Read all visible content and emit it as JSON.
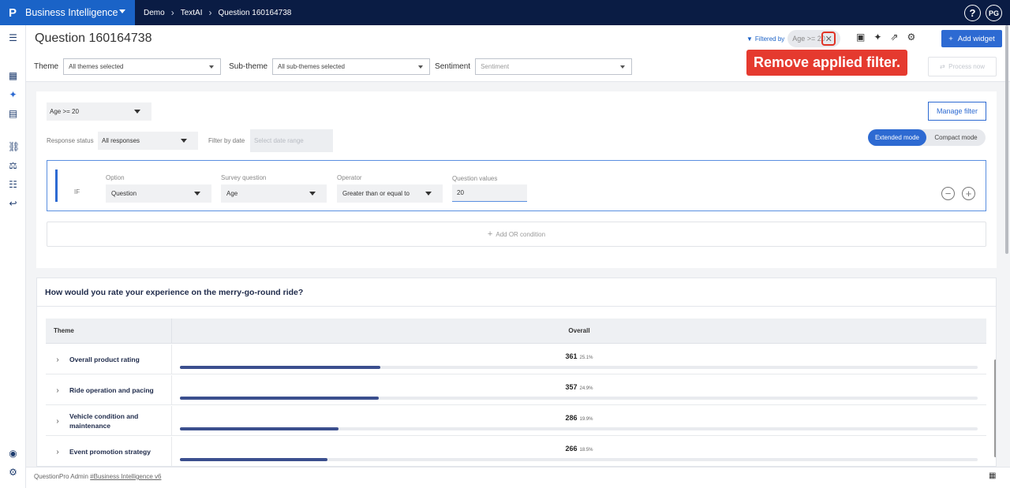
{
  "app": {
    "logo": "P",
    "name": "Business Intelligence"
  },
  "breadcrumb": [
    "Demo",
    "TextAI",
    "Question 160164738"
  ],
  "topbar": {
    "help": "?",
    "avatar": "PG"
  },
  "header": {
    "title": "Question 160164738",
    "filters": {
      "theme_label": "Theme",
      "theme_value": "All themes selected",
      "subtheme_label": "Sub-theme",
      "subtheme_value": "All sub-themes selected",
      "sentiment_label": "Sentiment",
      "sentiment_placeholder": "Sentiment"
    },
    "filtered_by_label": "Filtered by",
    "filter_pill": "Age >= 20",
    "add_widget": "Add widget",
    "process_now": "Process now",
    "tooltip": "Remove applied filter."
  },
  "filter_panel": {
    "age_filter": "Age >= 20",
    "manage_filter": "Manage filter",
    "response_status_label": "Response status",
    "response_status_value": "All responses",
    "filter_by_date_label": "Filter by date",
    "date_placeholder": "Select date range",
    "modes": {
      "extended": "Extended mode",
      "compact": "Compact mode"
    },
    "condition": {
      "if_label": "IF",
      "option_label": "Option",
      "option_value": "Question",
      "survey_question_label": "Survey question",
      "survey_question_value": "Age",
      "operator_label": "Operator",
      "operator_value": "Greater than or equal to",
      "question_values_label": "Question values",
      "question_values_value": "20"
    },
    "add_or": "Add OR condition"
  },
  "results": {
    "question": "How would you rate your experience on the merry-go-round ride?",
    "col_theme": "Theme",
    "col_overall": "Overall",
    "rows": [
      {
        "name": "Overall product rating",
        "count": "361",
        "pct": "25.1%",
        "fraction": 0.251
      },
      {
        "name": "Ride operation and pacing",
        "count": "357",
        "pct": "24.9%",
        "fraction": 0.249
      },
      {
        "name": "Vehicle condition and maintenance",
        "count": "286",
        "pct": "19.9%",
        "fraction": 0.199
      },
      {
        "name": "Event promotion strategy",
        "count": "266",
        "pct": "18.5%",
        "fraction": 0.185
      }
    ]
  },
  "footer": {
    "text": "QuestionPro Admin",
    "link": "#Business Intelligence v6"
  },
  "colors": {
    "topbar": "#0a1c44",
    "brand": "#1a63c7",
    "accent": "#2d6ad2",
    "tooltip": "#e53a2f",
    "bar_fill": "#3b4f8e"
  }
}
